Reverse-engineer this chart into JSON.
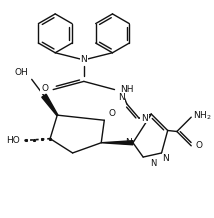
{
  "bg": "#ffffff",
  "lc": "#111111",
  "lw": 1.0,
  "fs": 6.5,
  "figsize": [
    2.14,
    2.18
  ],
  "dpi": 100,
  "xlim": [
    0.0,
    1.0
  ],
  "ylim": [
    0.0,
    1.0
  ]
}
